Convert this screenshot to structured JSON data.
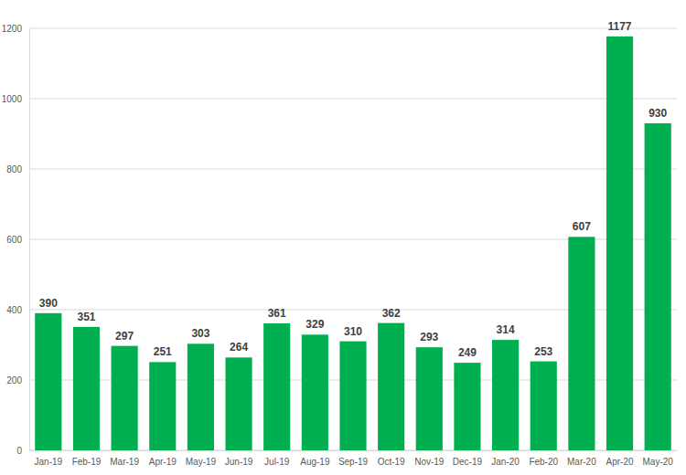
{
  "chart_data": {
    "type": "bar",
    "categories": [
      "Jan-19",
      "Feb-19",
      "Mar-19",
      "Apr-19",
      "May-19",
      "Jun-19",
      "Jul-19",
      "Aug-19",
      "Sep-19",
      "Oct-19",
      "Nov-19",
      "Dec-19",
      "Jan-20",
      "Feb-20",
      "Mar-20",
      "Apr-20",
      "May-20"
    ],
    "values": [
      390,
      351,
      297,
      251,
      303,
      264,
      361,
      329,
      310,
      362,
      293,
      249,
      314,
      253,
      607,
      1177,
      930
    ],
    "color": "#00b050",
    "ylim": [
      0,
      1200
    ],
    "yticks": [
      0,
      200,
      400,
      600,
      800,
      1000,
      1200
    ],
    "grid": true,
    "data_labels": true
  }
}
